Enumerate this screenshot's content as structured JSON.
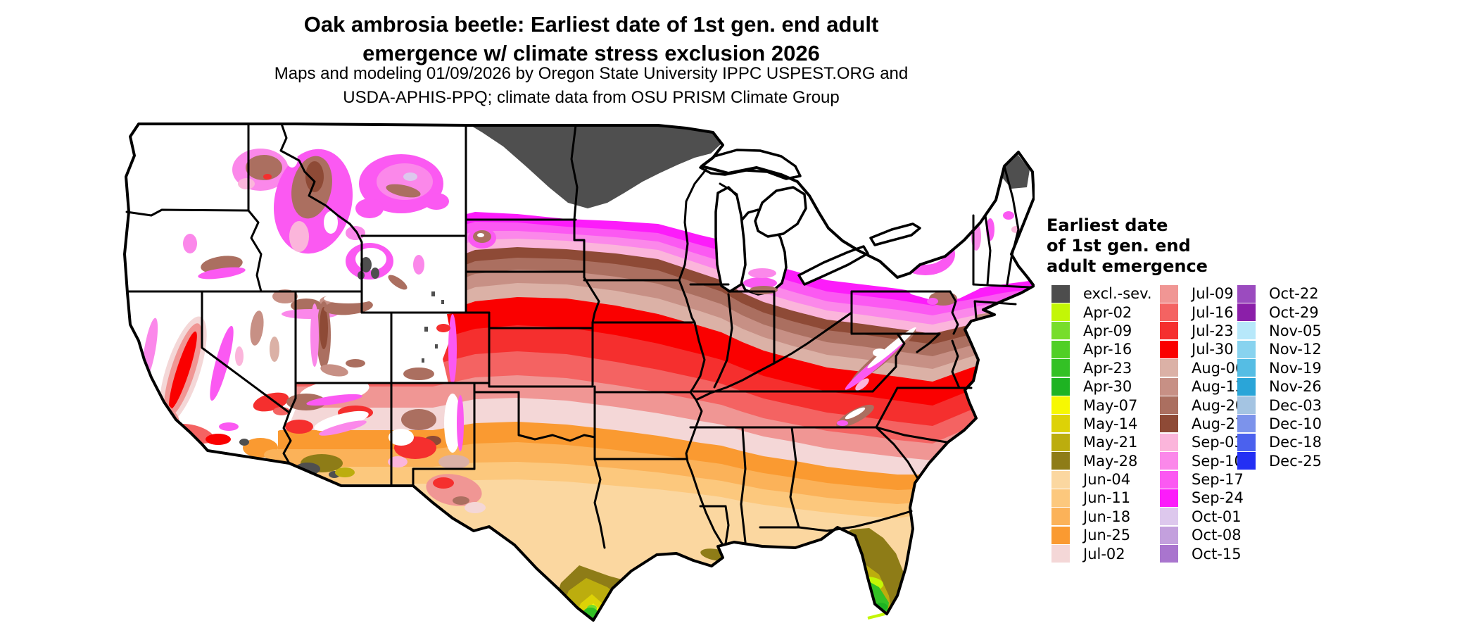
{
  "title": {
    "line1": "Oak ambrosia beetle: Earliest date of 1st gen. end adult",
    "line2": "emergence w/ climate stress exclusion 2026"
  },
  "subtitle": {
    "line1": "Maps and modeling 01/09/2026 by Oregon State University IPPC USPEST.ORG and",
    "line2": "USDA-APHIS-PPQ; climate data from OSU PRISM Climate Group"
  },
  "legend": {
    "title_lines": [
      "Earliest date",
      "of 1st gen. end",
      "adult emergence"
    ],
    "columns": [
      {
        "entries": [
          {
            "label": "excl.-sev.",
            "color": "#4d4d4d"
          },
          {
            "label": "Apr-02",
            "color": "#c3f606"
          },
          {
            "label": "Apr-09",
            "color": "#77dd2b"
          },
          {
            "label": "Apr-16",
            "color": "#50cf26"
          },
          {
            "label": "Apr-23",
            "color": "#33c125"
          },
          {
            "label": "Apr-30",
            "color": "#1eb322"
          },
          {
            "label": "May-07",
            "color": "#f7f802"
          },
          {
            "label": "May-14",
            "color": "#ddd206"
          },
          {
            "label": "May-21",
            "color": "#bcad0e"
          },
          {
            "label": "May-28",
            "color": "#8e7c17"
          },
          {
            "label": "Jun-04",
            "color": "#fbd7a0"
          },
          {
            "label": "Jun-11",
            "color": "#fcc87d"
          },
          {
            "label": "Jun-18",
            "color": "#fbb259"
          },
          {
            "label": "Jun-25",
            "color": "#fa9a31"
          },
          {
            "label": "Jul-02",
            "color": "#f4d7d7"
          }
        ]
      },
      {
        "entries": [
          {
            "label": "Jul-09",
            "color": "#f09694"
          },
          {
            "label": "Jul-16",
            "color": "#f46362"
          },
          {
            "label": "Jul-23",
            "color": "#f52f2e"
          },
          {
            "label": "Jul-30",
            "color": "#fa0000"
          },
          {
            "label": "Aug-06",
            "color": "#dbb1a6"
          },
          {
            "label": "Aug-13",
            "color": "#c79085"
          },
          {
            "label": "Aug-20",
            "color": "#ab6f60"
          },
          {
            "label": "Aug-27",
            "color": "#8e4a36"
          },
          {
            "label": "Sep-03",
            "color": "#fbb5db"
          },
          {
            "label": "Sep-10",
            "color": "#fb88ea"
          },
          {
            "label": "Sep-17",
            "color": "#fb59f2"
          },
          {
            "label": "Sep-24",
            "color": "#fc1cfa"
          },
          {
            "label": "Oct-01",
            "color": "#ddc8ed"
          },
          {
            "label": "Oct-08",
            "color": "#c3a0dd"
          },
          {
            "label": "Oct-15",
            "color": "#a975ce"
          }
        ]
      },
      {
        "entries": [
          {
            "label": "Oct-22",
            "color": "#9b4bbf"
          },
          {
            "label": "Oct-29",
            "color": "#8b1fa9"
          },
          {
            "label": "Nov-05",
            "color": "#b7e8fa"
          },
          {
            "label": "Nov-12",
            "color": "#88d3ef"
          },
          {
            "label": "Nov-19",
            "color": "#55bde4"
          },
          {
            "label": "Nov-26",
            "color": "#2aa5d8"
          },
          {
            "label": "Dec-03",
            "color": "#a4c4e2"
          },
          {
            "label": "Dec-10",
            "color": "#7c93eb"
          },
          {
            "label": "Dec-18",
            "color": "#4b61ee"
          },
          {
            "label": "Dec-25",
            "color": "#232ff4"
          }
        ]
      }
    ]
  }
}
